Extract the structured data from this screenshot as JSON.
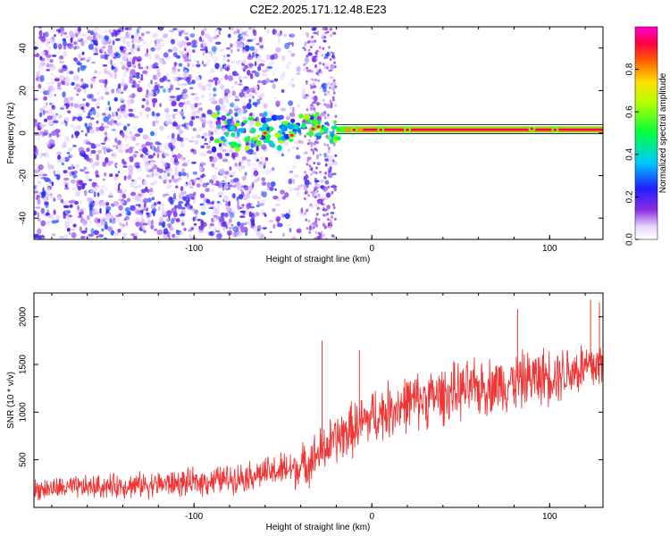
{
  "title": "C2E2.2025.171.12.48.E23",
  "chart_data": [
    {
      "type": "heatmap",
      "xlabel": "Height of straight line (km)",
      "ylabel": "Frequency (Hz)",
      "xlim": [
        -190,
        130
      ],
      "ylim": [
        -50,
        50
      ],
      "xticks": [
        -100,
        0,
        100
      ],
      "yticks": [
        -40,
        -20,
        0,
        20,
        40
      ],
      "colorbar": {
        "label": "Normalized spectral amplitude",
        "range": [
          0,
          1
        ],
        "ticks": [
          0,
          0.2,
          0.4,
          0.6,
          0.8
        ],
        "tick_labels": [
          "0.0",
          "0.2",
          "0.4",
          "0.6",
          "0.8"
        ],
        "colormap": "rainbow (white-violet-blue-cyan-green-yellow-red-magenta)"
      },
      "features": [
        {
          "description": "scattered noise blobs across full frequency band",
          "x_range": [
            -190,
            -20
          ],
          "amplitude": [
            0.05,
            0.3
          ]
        },
        {
          "description": "narrow signal band near 0-2 Hz",
          "x_range": [
            -90,
            130
          ],
          "frequency": 1.5,
          "amplitude": [
            0.4,
            1.0
          ]
        }
      ]
    },
    {
      "type": "line",
      "xlabel": "Height of straight line (km)",
      "ylabel": "SNR (10 * v/v)",
      "xlim": [
        -190,
        130
      ],
      "ylim": [
        0,
        2250
      ],
      "xticks": [
        -100,
        0,
        100
      ],
      "yticks": [
        500,
        1000,
        1500,
        2000
      ],
      "series": [
        {
          "color": "#f03535",
          "trend": [
            [
              -190,
              190
            ],
            [
              -150,
              220
            ],
            [
              -100,
              260
            ],
            [
              -80,
              300
            ],
            [
              -60,
              360
            ],
            [
              -40,
              420
            ],
            [
              -30,
              560
            ],
            [
              -20,
              720
            ],
            [
              -10,
              830
            ],
            [
              0,
              950
            ],
            [
              20,
              1100
            ],
            [
              50,
              1220
            ],
            [
              80,
              1320
            ],
            [
              100,
              1390
            ],
            [
              130,
              1500
            ]
          ],
          "noise_amplitude": [
            [
              -190,
              110
            ],
            [
              -60,
              160
            ],
            [
              -30,
              260
            ],
            [
              0,
              300
            ],
            [
              130,
              300
            ]
          ],
          "spikes": [
            [
              -28,
              1750
            ],
            [
              -7,
              1650
            ],
            [
              82,
              2080
            ],
            [
              123,
              2180
            ],
            [
              128,
              2150
            ]
          ]
        }
      ]
    }
  ]
}
